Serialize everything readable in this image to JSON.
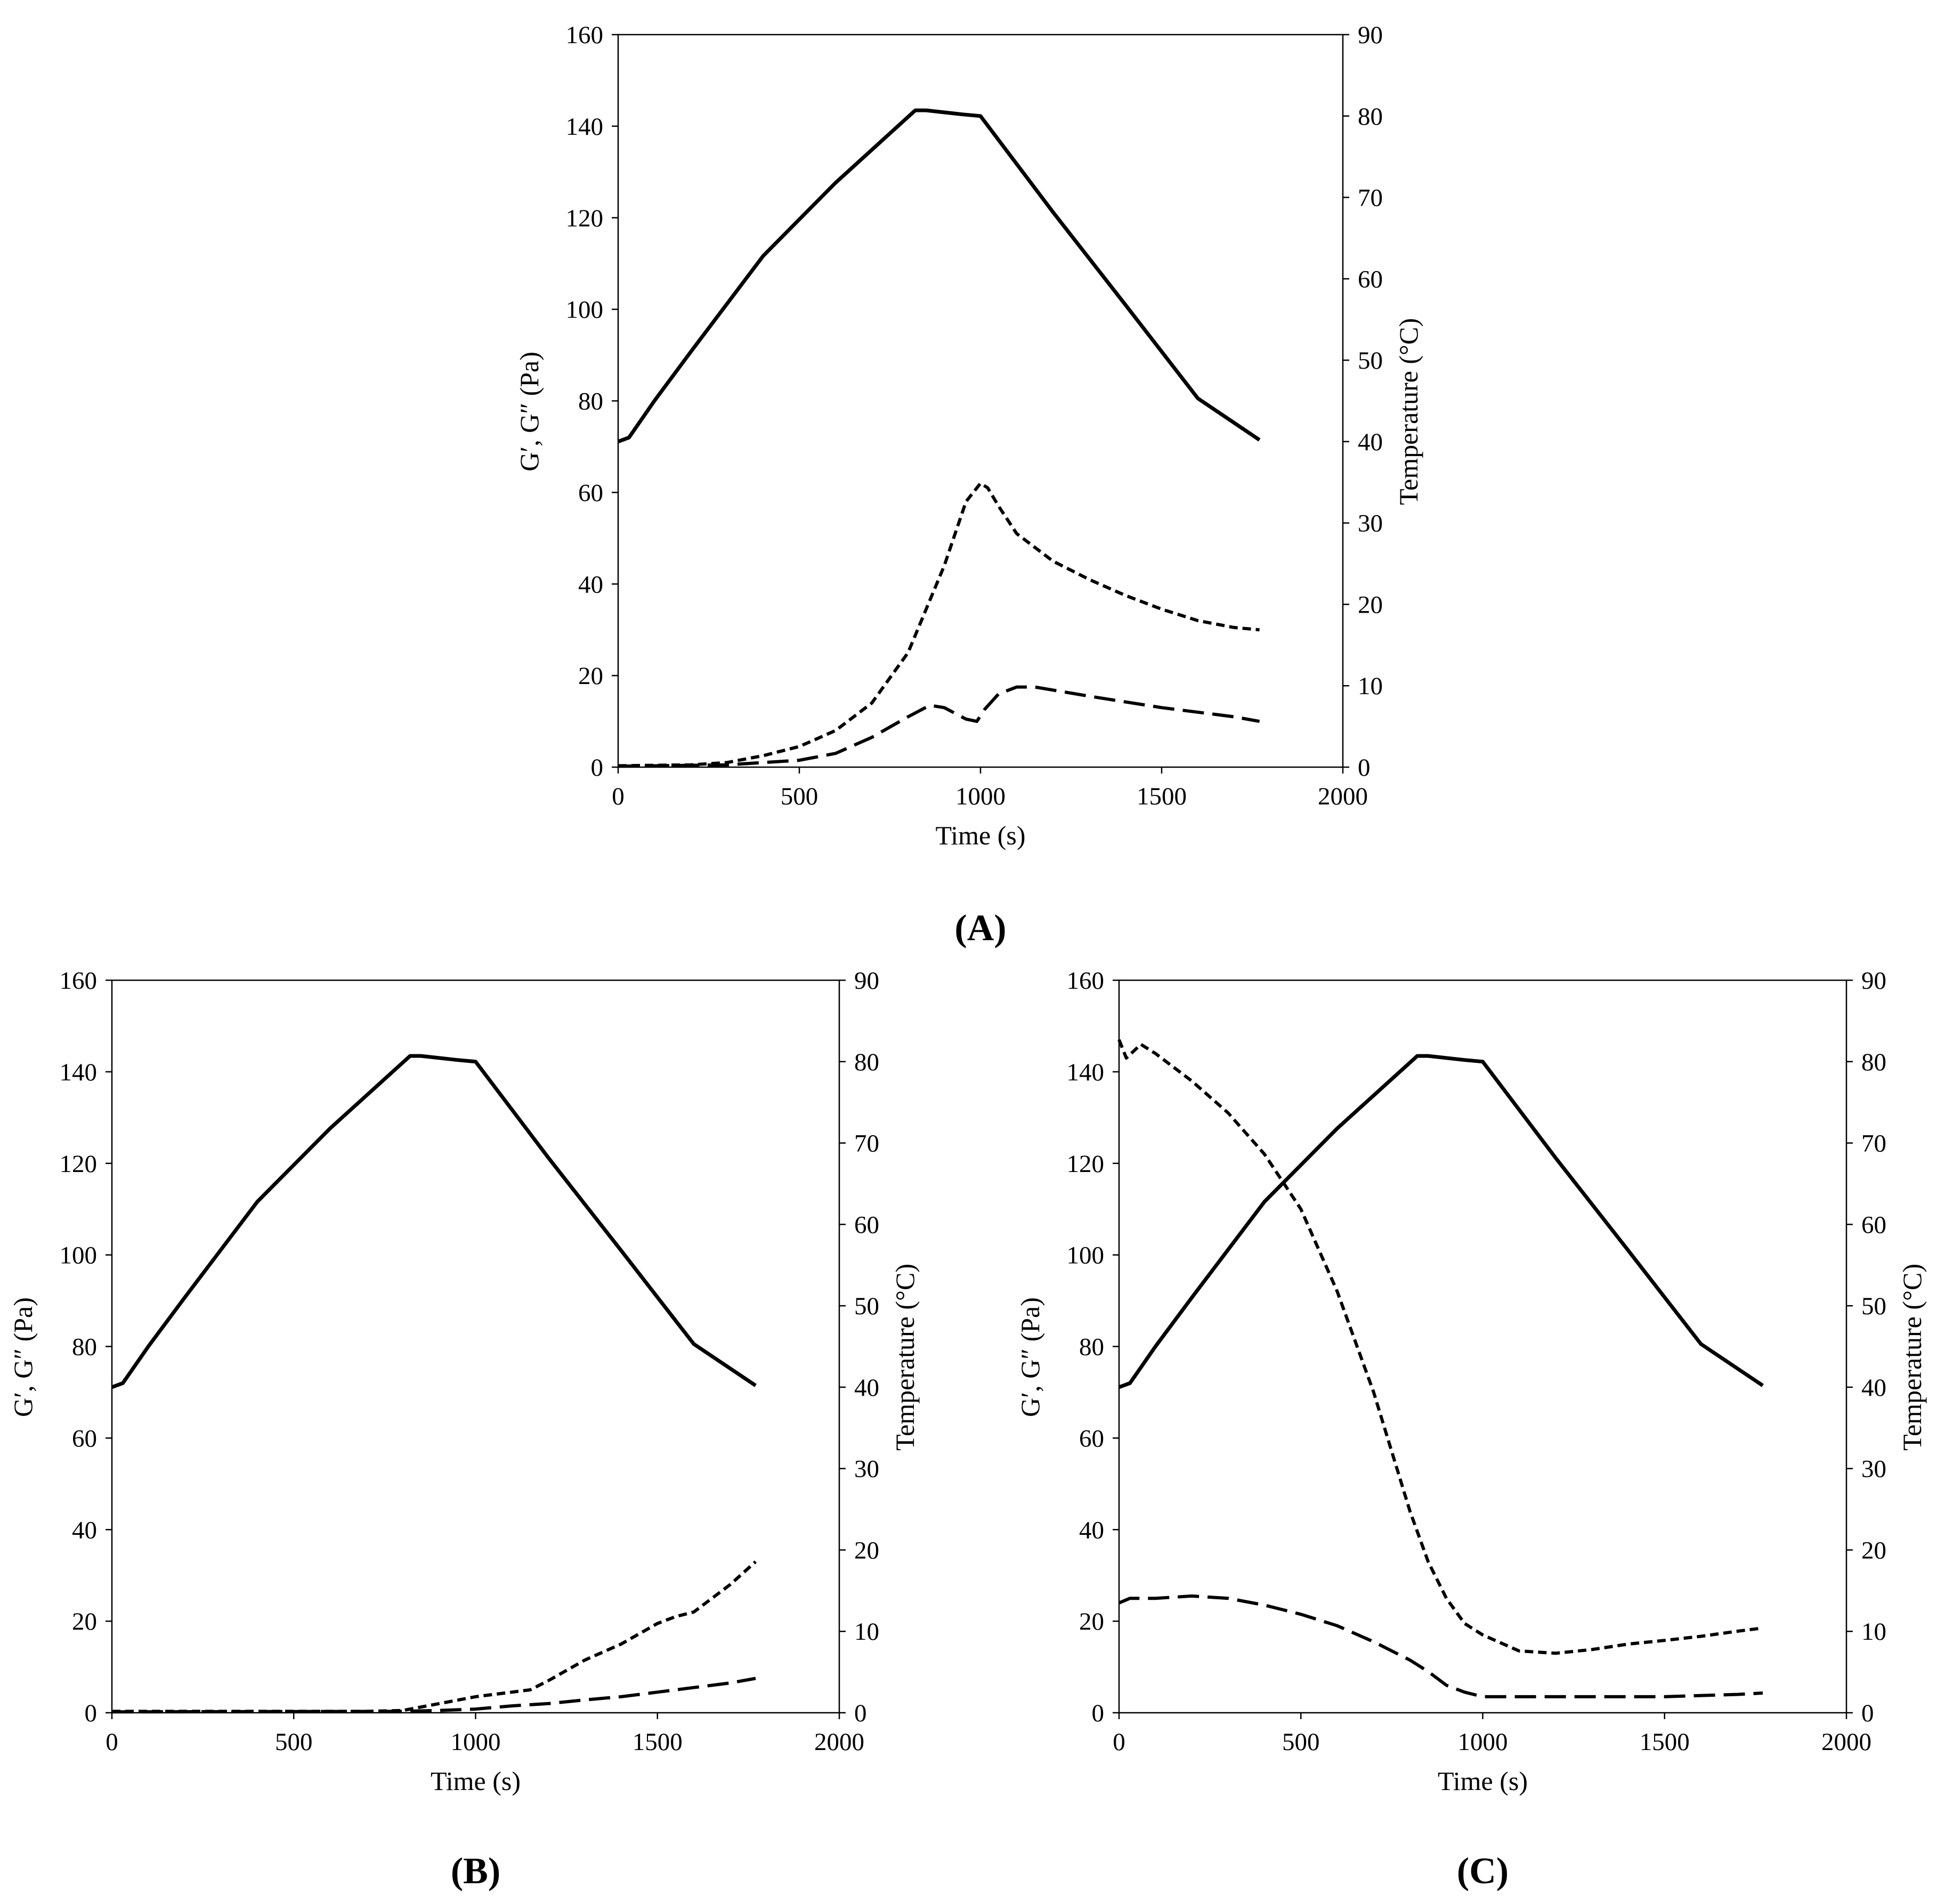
{
  "figure": {
    "colors": {
      "background": "#ffffff",
      "ink": "#000000"
    }
  },
  "chart_data": [
    {
      "panel": "A",
      "panel_label": "(A)",
      "type": "line",
      "xlabel": "Time (s)",
      "ylabel_left": "G′, G″ (Pa)",
      "ylabel_right": "Temperature (°C)",
      "xlim": [
        0,
        2000
      ],
      "ylim_left": [
        0,
        160
      ],
      "ylim_right": [
        0,
        90
      ],
      "xticks": [
        "0",
        "500",
        "1000",
        "1500",
        "2000"
      ],
      "yticks_left": [
        "0",
        "20",
        "40",
        "60",
        "80",
        "100",
        "120",
        "140",
        "160"
      ],
      "yticks_right": [
        "0",
        "10",
        "20",
        "30",
        "40",
        "50",
        "60",
        "70",
        "80",
        "90"
      ],
      "grid": false,
      "legend": "none",
      "series": [
        {
          "name": "Temperature",
          "axis": "right",
          "style": "solid",
          "x": [
            0,
            30,
            100,
            200,
            400,
            600,
            820,
            850,
            950,
            1000,
            1200,
            1400,
            1600,
            1770
          ],
          "y": [
            40,
            40.5,
            45,
            51,
            62.8,
            71.8,
            80.7,
            80.7,
            80.2,
            80,
            68.2,
            56.8,
            45.3,
            40.2
          ]
        },
        {
          "name": "G'",
          "axis": "left",
          "style": "short-dash",
          "x": [
            0,
            200,
            300,
            400,
            500,
            600,
            700,
            800,
            900,
            960,
            1000,
            1020,
            1050,
            1100,
            1200,
            1300,
            1400,
            1500,
            1600,
            1700,
            1770
          ],
          "y": [
            0.3,
            0.5,
            1,
            2.5,
            4.5,
            8,
            14,
            25,
            44,
            58,
            62,
            61,
            57,
            51,
            45,
            41,
            37.5,
            34.5,
            32,
            30.5,
            30
          ]
        },
        {
          "name": "G''",
          "axis": "left",
          "style": "long-dash",
          "x": [
            0,
            300,
            500,
            600,
            700,
            800,
            860,
            900,
            960,
            990,
            1010,
            1050,
            1100,
            1150,
            1300,
            1500,
            1700,
            1770
          ],
          "y": [
            0.2,
            0.5,
            1.5,
            3,
            6.5,
            11,
            13.5,
            13,
            10.5,
            10,
            12.5,
            16,
            17.5,
            17.5,
            15.5,
            13,
            11,
            10
          ]
        }
      ]
    },
    {
      "panel": "B",
      "panel_label": "(B)",
      "type": "line",
      "xlabel": "Time (s)",
      "ylabel_left": "G′, G″ (Pa)",
      "ylabel_right": "Temperature (°C)",
      "xlim": [
        0,
        2000
      ],
      "ylim_left": [
        0,
        160
      ],
      "ylim_right": [
        0,
        90
      ],
      "xticks": [
        "0",
        "500",
        "1000",
        "1500",
        "2000"
      ],
      "yticks_left": [
        "0",
        "20",
        "40",
        "60",
        "80",
        "100",
        "120",
        "140",
        "160"
      ],
      "yticks_right": [
        "0",
        "10",
        "20",
        "30",
        "40",
        "50",
        "60",
        "70",
        "80",
        "90"
      ],
      "grid": false,
      "legend": "none",
      "series": [
        {
          "name": "Temperature",
          "axis": "right",
          "style": "solid",
          "x": [
            0,
            30,
            100,
            200,
            400,
            600,
            820,
            850,
            950,
            1000,
            1200,
            1400,
            1600,
            1770
          ],
          "y": [
            40,
            40.5,
            45,
            51,
            62.8,
            71.8,
            80.7,
            80.7,
            80.2,
            80,
            68.2,
            56.8,
            45.3,
            40.2
          ]
        },
        {
          "name": "G'",
          "axis": "left",
          "style": "short-dash",
          "x": [
            0,
            700,
            800,
            900,
            1000,
            1100,
            1150,
            1200,
            1300,
            1400,
            1500,
            1550,
            1600,
            1700,
            1770
          ],
          "y": [
            0.3,
            0.3,
            0.5,
            2,
            3.5,
            4.5,
            5,
            7,
            11.5,
            15,
            19.5,
            21,
            22,
            28,
            33
          ]
        },
        {
          "name": "G''",
          "axis": "left",
          "style": "long-dash",
          "x": [
            0,
            800,
            900,
            1000,
            1100,
            1200,
            1300,
            1400,
            1500,
            1600,
            1700,
            1770
          ],
          "y": [
            0.2,
            0.3,
            0.5,
            0.8,
            1.5,
            2,
            2.8,
            3.5,
            4.5,
            5.5,
            6.5,
            7.5
          ]
        }
      ]
    },
    {
      "panel": "C",
      "panel_label": "(C)",
      "type": "line",
      "xlabel": "Time (s)",
      "ylabel_left": "G′, G″ (Pa)",
      "ylabel_right": "Temperature (°C)",
      "xlim": [
        0,
        2000
      ],
      "ylim_left": [
        0,
        160
      ],
      "ylim_right": [
        0,
        90
      ],
      "xticks": [
        "0",
        "500",
        "1000",
        "1500",
        "2000"
      ],
      "yticks_left": [
        "0",
        "20",
        "40",
        "60",
        "80",
        "100",
        "120",
        "140",
        "160"
      ],
      "yticks_right": [
        "0",
        "10",
        "20",
        "30",
        "40",
        "50",
        "60",
        "70",
        "80",
        "90"
      ],
      "grid": false,
      "legend": "none",
      "series": [
        {
          "name": "Temperature",
          "axis": "right",
          "style": "solid",
          "x": [
            0,
            30,
            100,
            200,
            400,
            600,
            820,
            850,
            950,
            1000,
            1200,
            1400,
            1600,
            1770
          ],
          "y": [
            40,
            40.5,
            45,
            51,
            62.8,
            71.8,
            80.7,
            80.7,
            80.2,
            80,
            68.2,
            56.8,
            45.3,
            40.2
          ]
        },
        {
          "name": "G'",
          "axis": "left",
          "style": "short-dash",
          "x": [
            0,
            20,
            60,
            100,
            200,
            300,
            400,
            500,
            600,
            700,
            750,
            800,
            850,
            900,
            950,
            1000,
            1100,
            1200,
            1300,
            1400,
            1500,
            1600,
            1700,
            1770
          ],
          "y": [
            147,
            143,
            146,
            144,
            138,
            131,
            122,
            110,
            92,
            70,
            57,
            44,
            33,
            25,
            19.5,
            17,
            13.5,
            13,
            13.8,
            15,
            15.8,
            16.7,
            17.8,
            18.5
          ]
        },
        {
          "name": "G''",
          "axis": "left",
          "style": "long-dash",
          "x": [
            0,
            30,
            100,
            200,
            300,
            400,
            500,
            600,
            700,
            800,
            850,
            900,
            950,
            1000,
            1100,
            1300,
            1500,
            1700,
            1770
          ],
          "y": [
            24,
            25,
            25,
            25.5,
            25,
            23.5,
            21.5,
            19,
            15.5,
            11.5,
            9,
            6,
            4.5,
            3.5,
            3.5,
            3.5,
            3.5,
            4,
            4.3
          ]
        }
      ]
    }
  ]
}
